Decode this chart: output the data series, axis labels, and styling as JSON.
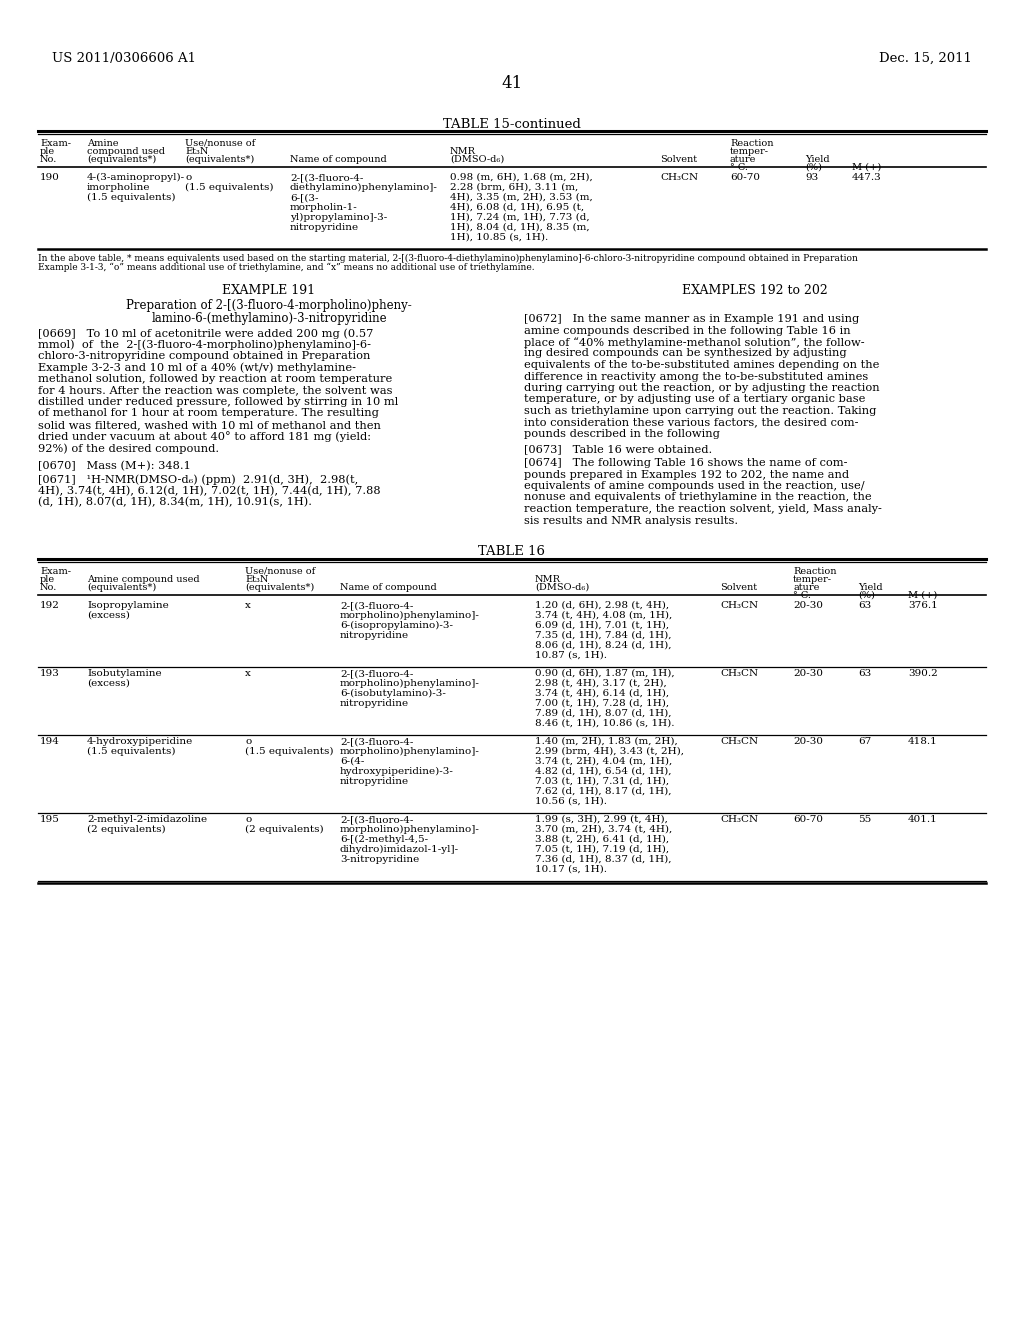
{
  "header_left": "US 2011/0306606 A1",
  "header_right": "Dec. 15, 2011",
  "page_number": "41",
  "table15_title": "TABLE 15-continued",
  "table15_footnote": "In the above table, * means equivalents used based on the starting material, 2-[(3-fluoro-4-diethylamino)phenylamino]-6-chloro-3-nitropyridine compound obtained in Preparation\nExample 3-1-3, “o” means additional use of triethylamine, and “x” means no additional use of triethylamine.",
  "example191_title": "EXAMPLE 191",
  "examples192_title": "EXAMPLES 192 to 202",
  "table16_title": "TABLE 16",
  "bg_color": "#ffffff"
}
